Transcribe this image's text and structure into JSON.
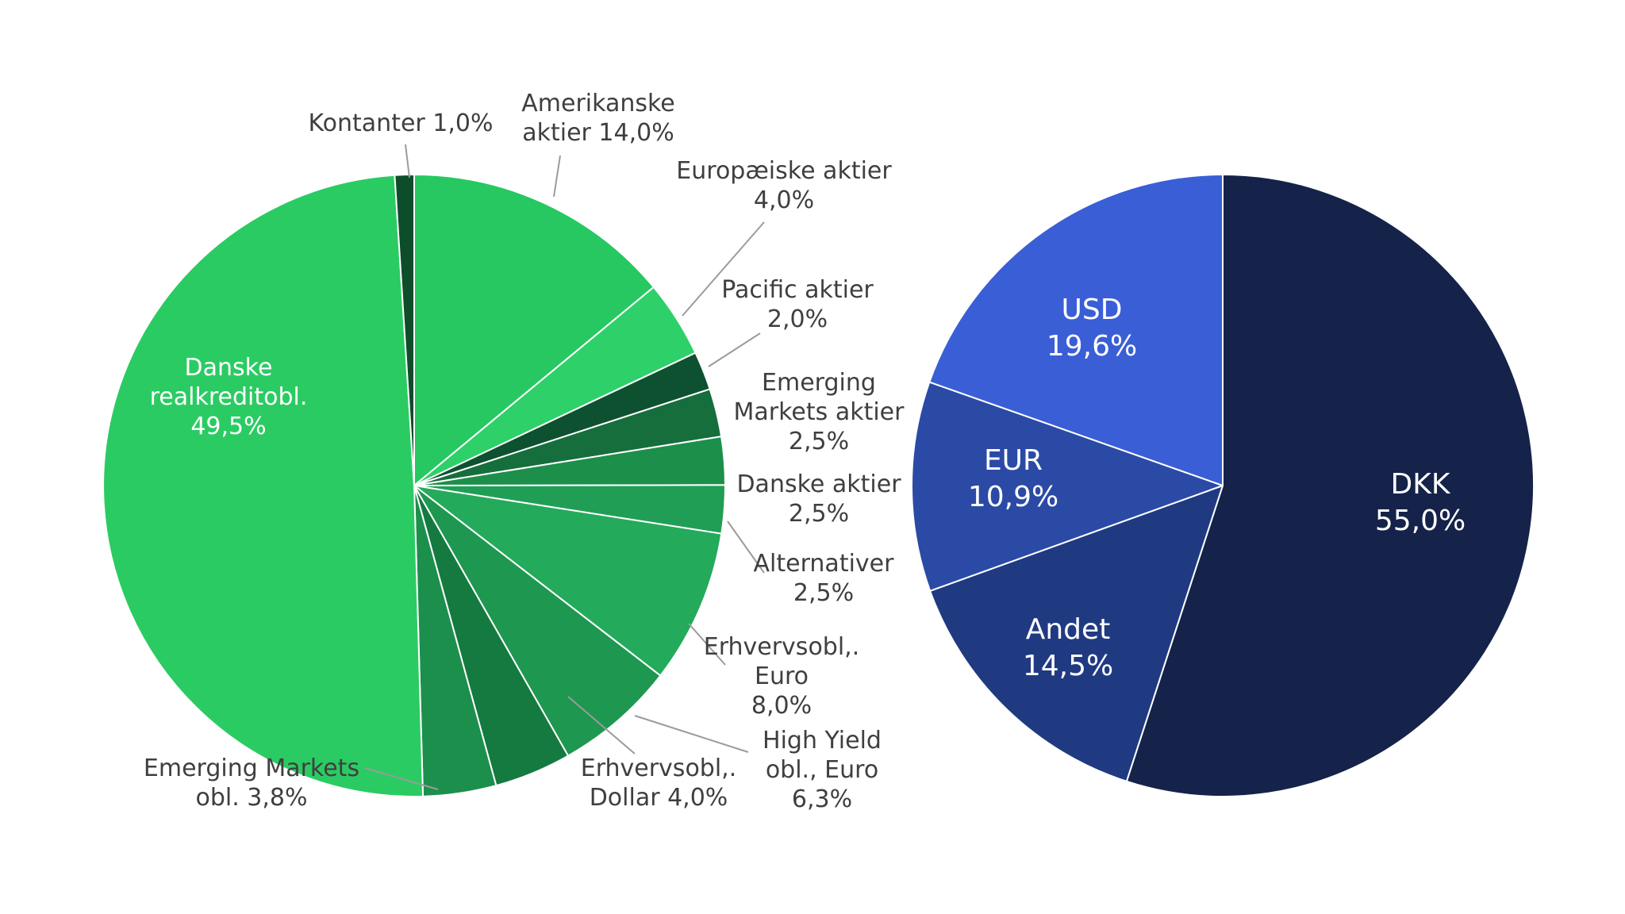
{
  "page": {
    "background_color": "#ffffff",
    "label_text_color": "#3f3f3f",
    "inside_label_color": "#ffffff",
    "leader_line_color": "#9b9b9b"
  },
  "chart_data": [
    {
      "type": "pie",
      "name": "asset-allocation-pie",
      "title": "",
      "legend": "none",
      "start_angle_deg": 0,
      "direction": "clockwise",
      "slices": [
        {
          "label": "Amerikanske aktier",
          "value": 14.0,
          "pct_display": "14,0%",
          "color": "#27c861",
          "label_position": "outside",
          "label_lines": [
            "Amerikanske",
            "aktier 14,0%"
          ]
        },
        {
          "label": "Europæiske aktier",
          "value": 4.0,
          "pct_display": "4,0%",
          "color": "#2ed06a",
          "label_position": "outside",
          "label_lines": [
            "Europæiske aktier",
            "4,0%"
          ]
        },
        {
          "label": "Pacific aktier",
          "value": 2.0,
          "pct_display": "2,0%",
          "color": "#0d5130",
          "label_position": "outside",
          "label_lines": [
            "Pacific aktier",
            "2,0%"
          ]
        },
        {
          "label": "Emerging Markets aktier",
          "value": 2.5,
          "pct_display": "2,5%",
          "color": "#156e3c",
          "label_position": "outside",
          "label_lines": [
            "Emerging",
            "Markets aktier",
            "2,5%"
          ]
        },
        {
          "label": "Danske aktier",
          "value": 2.5,
          "pct_display": "2,5%",
          "color": "#1c8f4a",
          "label_position": "outside",
          "label_lines": [
            "Danske aktier",
            "2,5%"
          ]
        },
        {
          "label": "Alternativer",
          "value": 2.5,
          "pct_display": "2,5%",
          "color": "#219e55",
          "label_position": "outside",
          "label_lines": [
            "Alternativer",
            "2,5%"
          ]
        },
        {
          "label": "Erhvervsobl,. Euro",
          "value": 8.0,
          "pct_display": "8,0%",
          "color": "#24aa5b",
          "label_position": "outside",
          "label_lines": [
            "Erhvervsobl,.",
            "Euro",
            "8,0%"
          ]
        },
        {
          "label": "High Yield obl., Euro",
          "value": 6.3,
          "pct_display": "6,3%",
          "color": "#1e9750",
          "label_position": "outside",
          "label_lines": [
            "High Yield",
            "obl., Euro",
            "6,3%"
          ]
        },
        {
          "label": "Erhvervsobl,. Dollar",
          "value": 4.0,
          "pct_display": "4,0%",
          "color": "#147a3f",
          "label_position": "outside",
          "label_lines": [
            "Erhvervsobl,.",
            "Dollar 4,0%"
          ]
        },
        {
          "label": "Emerging Markets obl.",
          "value": 3.8,
          "pct_display": "3,8%",
          "color": "#1d8f4c",
          "label_position": "outside",
          "label_lines": [
            "Emerging Markets",
            "obl. 3,8%"
          ]
        },
        {
          "label": "Danske realkreditobl.",
          "value": 49.5,
          "pct_display": "49,5%",
          "color": "#2bcb63",
          "label_position": "inside",
          "label_lines": [
            "Danske",
            "realkreditobl.",
            "49,5%"
          ]
        },
        {
          "label": "Kontanter",
          "value": 1.0,
          "pct_display": "1,0%",
          "color": "#0d4d2a",
          "label_position": "outside",
          "label_lines": [
            "Kontanter 1,0%"
          ]
        }
      ]
    },
    {
      "type": "pie",
      "name": "currency-allocation-pie",
      "title": "",
      "legend": "none",
      "start_angle_deg": 0,
      "direction": "clockwise",
      "slices": [
        {
          "label": "DKK",
          "value": 55.0,
          "pct_display": "55,0%",
          "color": "#15234a",
          "label_position": "inside",
          "label_lines": [
            "DKK",
            "55,0%"
          ]
        },
        {
          "label": "Andet",
          "value": 14.5,
          "pct_display": "14,5%",
          "color": "#203a82",
          "label_position": "inside",
          "label_lines": [
            "Andet",
            "14,5%"
          ]
        },
        {
          "label": "EUR",
          "value": 10.9,
          "pct_display": "10,9%",
          "color": "#2b4aa6",
          "label_position": "inside",
          "label_lines": [
            "EUR",
            "10,9%"
          ]
        },
        {
          "label": "USD",
          "value": 19.6,
          "pct_display": "19,6%",
          "color": "#3a5ed6",
          "label_position": "inside",
          "label_lines": [
            "USD",
            "19,6%"
          ]
        }
      ]
    }
  ]
}
